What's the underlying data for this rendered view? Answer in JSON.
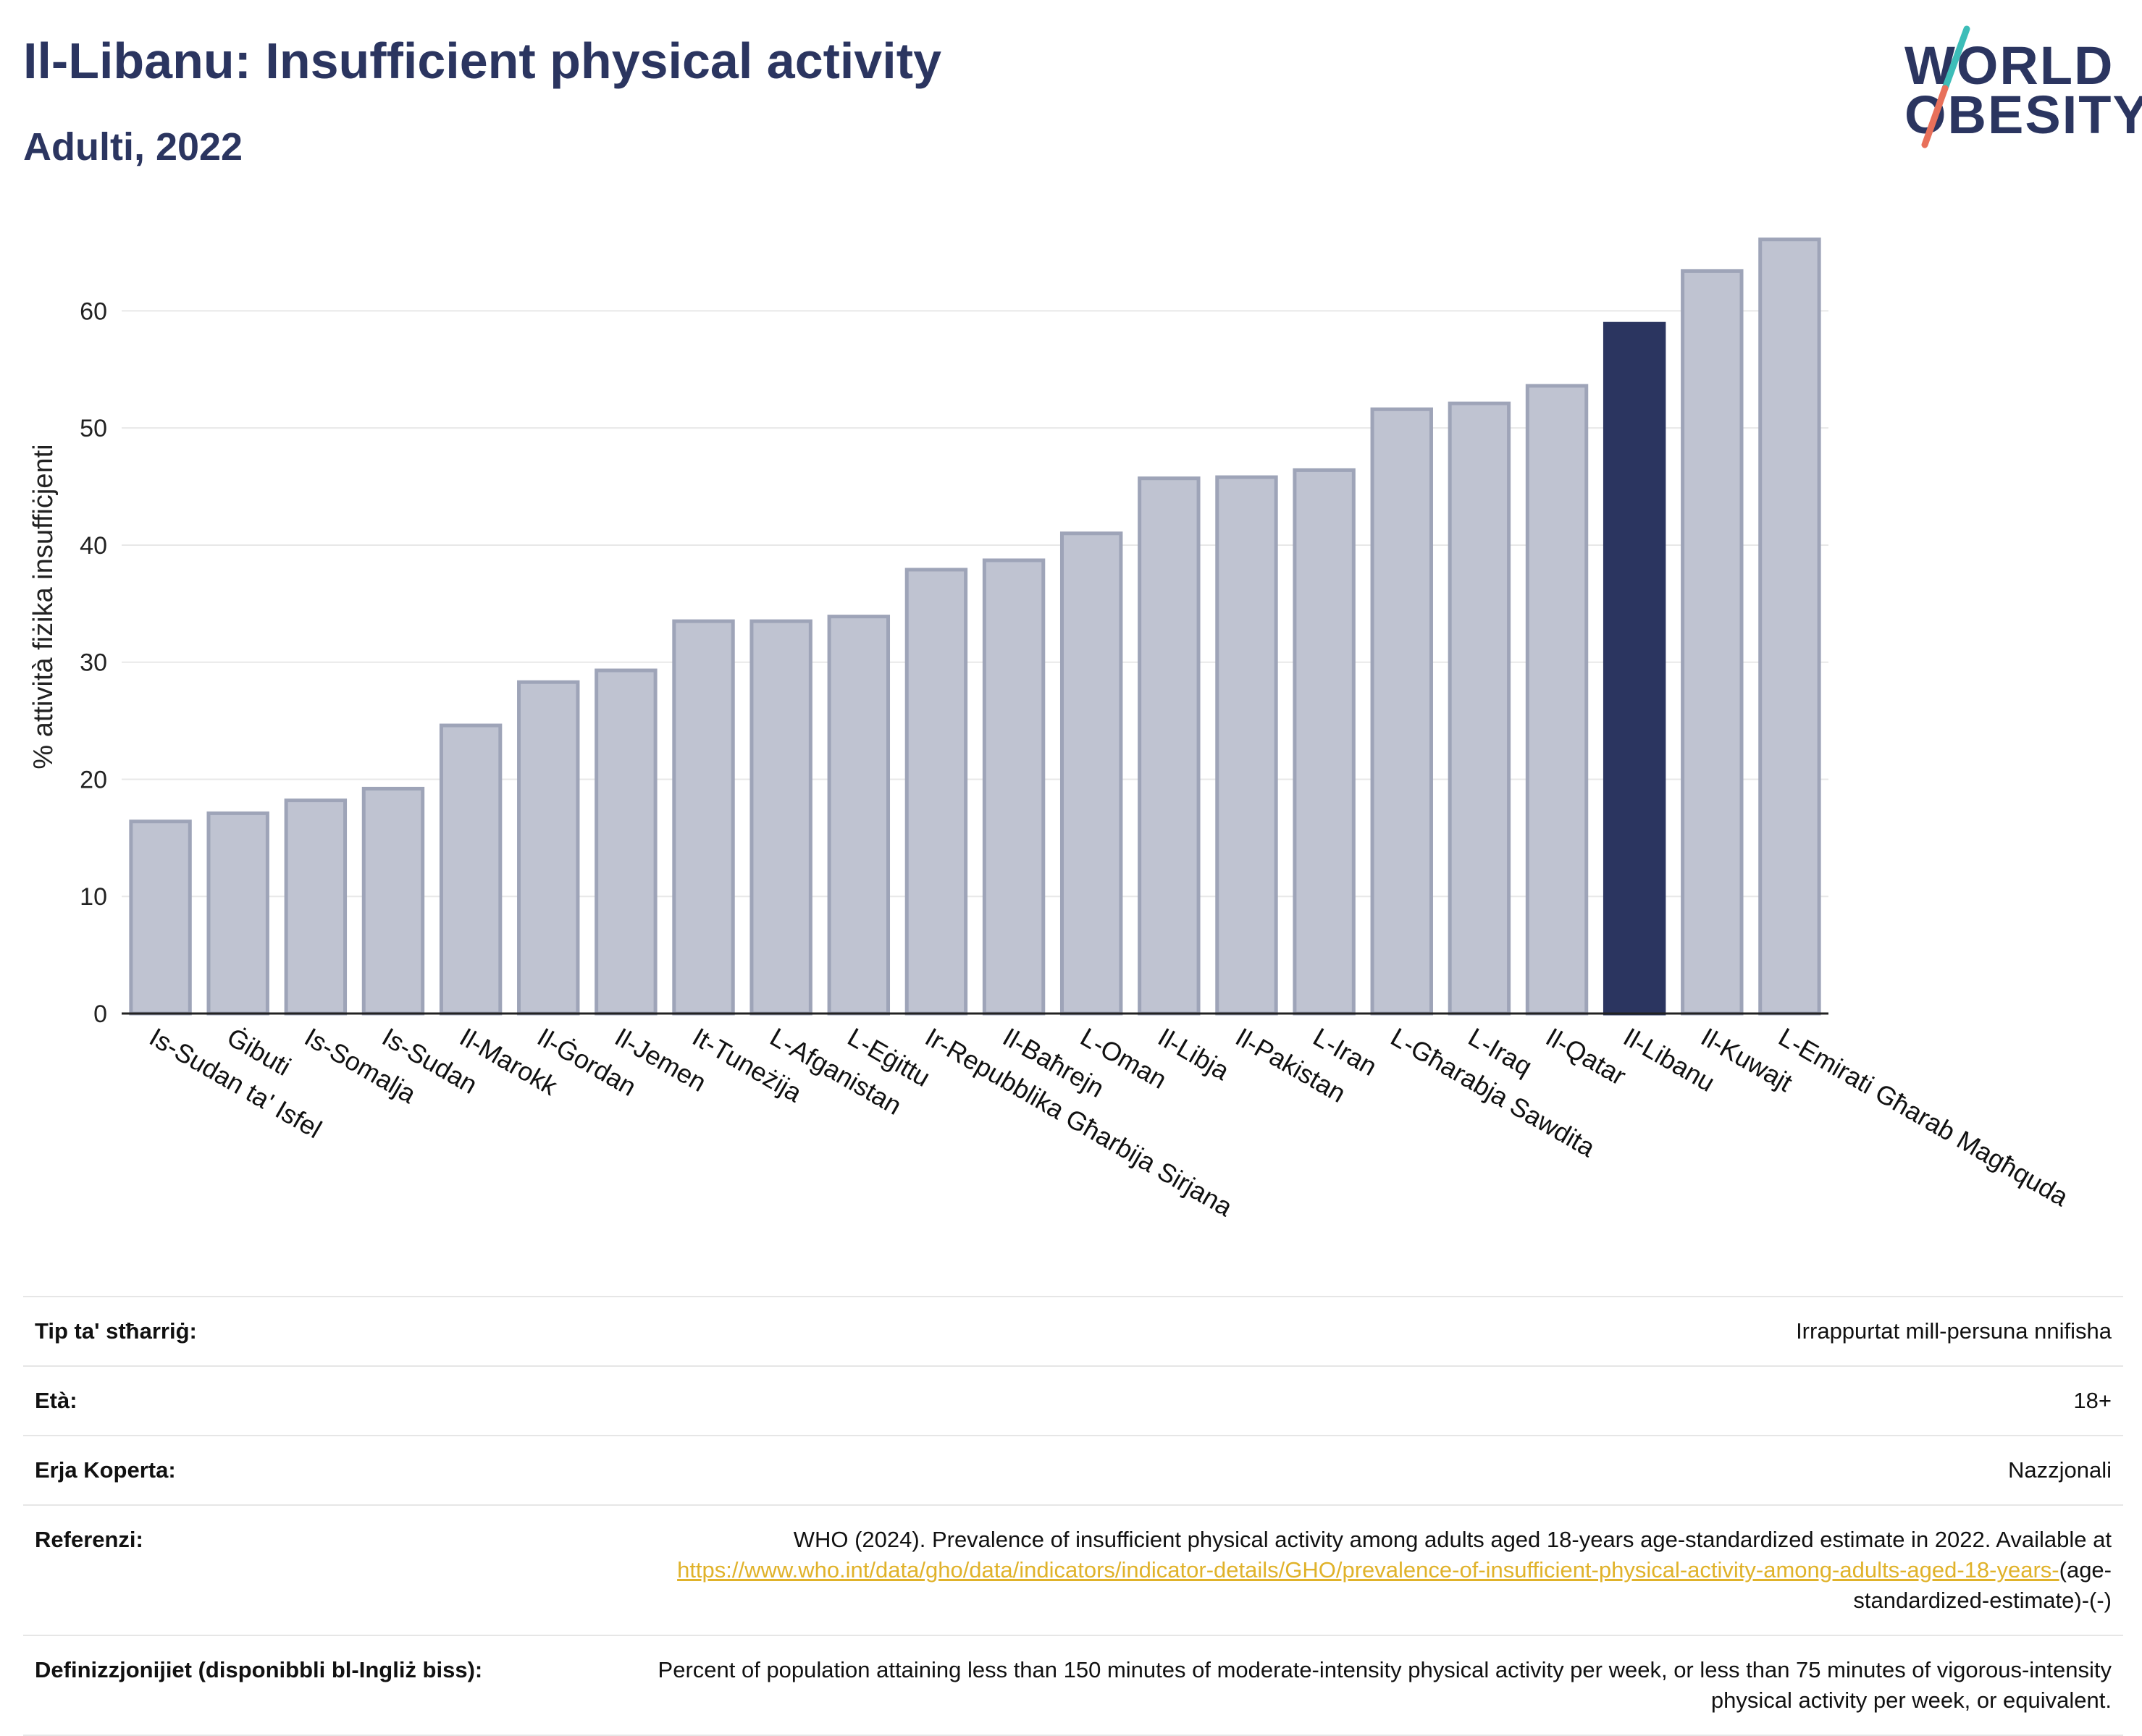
{
  "header": {
    "title": "Il-Libanu: Insufficient physical activity",
    "subtitle": "Adulti, 2022"
  },
  "logo": {
    "line1": "WORLD",
    "line2": "OBESITY"
  },
  "colors": {
    "bar": "#bfc3d1",
    "bar_stroke": "#9ea4b8",
    "highlight": "#2b3560",
    "grid": "#e8e8e8",
    "accent_teal": "#3dbdb8",
    "accent_red": "#e8705a"
  },
  "chart_data": {
    "type": "bar",
    "title": "Il-Libanu: Insufficient physical activity",
    "subtitle": "Adulti, 2022",
    "ylabel": "% attività fiżika insuffiċjenti",
    "xlabel": "",
    "ylim": [
      0,
      68
    ],
    "yticks": [
      0,
      10,
      20,
      30,
      40,
      50,
      60
    ],
    "grid": true,
    "highlight_category": "Il-Libanu",
    "categories": [
      "Is-Sudan ta' Isfel",
      "Ġibuti",
      "Is-Somalja",
      "Is-Sudan",
      "Il-Marokk",
      "Il-Ġordan",
      "Il-Jemen",
      "It-Tuneżija",
      "L-Afganistan",
      "L-Eġittu",
      "Ir-Repubblika Għarbija Sirjana",
      "Il-Baħrejn",
      "L-Oman",
      "Il-Libja",
      "Il-Pakistan",
      "L-Iran",
      "L-Għarabja Sawdita",
      "L-Iraq",
      "Il-Qatar",
      "Il-Libanu",
      "Il-Kuwajt",
      "L-Emirati Għarab Magħquda"
    ],
    "values": [
      16.4,
      17.1,
      18.2,
      19.2,
      24.6,
      28.3,
      29.3,
      33.5,
      33.5,
      33.9,
      37.9,
      38.7,
      41.0,
      45.7,
      45.8,
      46.4,
      51.6,
      52.1,
      53.6,
      58.9,
      63.4,
      66.1
    ]
  },
  "meta": {
    "rows": [
      {
        "label": "Tip ta' stħarriġ:",
        "value": "Irrappurtat mill-persuna nnifisha"
      },
      {
        "label": "Età:",
        "value": "18+"
      },
      {
        "label": "Erja Koperta:",
        "value": "Nazzjonali"
      }
    ],
    "reference": {
      "label": "Referenzi:",
      "text": "WHO (2024). Prevalence of insufficient physical activity among adults aged 18-years age-standardized estimate in 2022. Available at",
      "link": "https://www.who.int/data/gho/data/indicators/indicator-details/GHO/prevalence-of-insufficient-physical-activity-among-adults-aged-18-years-",
      "suffix": "(age-standardized-estimate)-(-)"
    },
    "definition": {
      "label": "Definizzjonijiet (disponibbli bl-Ingliż biss):",
      "text": "Percent of population attaining less than 150 minutes of moderate-intensity physical activity per week, or less than 75 minutes of vigorous-intensity physical activity per week, or equivalent."
    }
  }
}
